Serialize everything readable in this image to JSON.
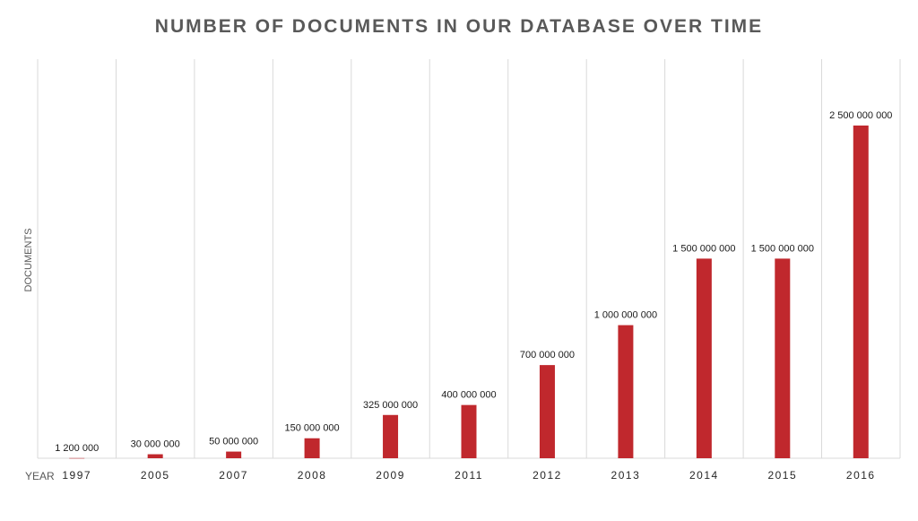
{
  "chart_data": {
    "type": "bar",
    "title": "NUMBER OF DOCUMENTS IN OUR DATABASE OVER TIME",
    "xlabel": "YEAR",
    "ylabel": "DOCUMENTS",
    "categories": [
      "1997",
      "2005",
      "2007",
      "2008",
      "2009",
      "2011",
      "2012",
      "2013",
      "2014",
      "2015",
      "2016"
    ],
    "values": [
      1200000,
      30000000,
      50000000,
      150000000,
      325000000,
      400000000,
      700000000,
      1000000000,
      1500000000,
      1500000000,
      2500000000
    ],
    "data_labels": [
      "1 200 000",
      "30 000 000",
      "50 000 000",
      "150 000 000",
      "325 000 000",
      "400 000 000",
      "700 000 000",
      "1 000 000 000",
      "1 500 000 000",
      "1 500 000 000",
      "2 500 000 000"
    ],
    "ylim": [
      0,
      2500000000
    ],
    "grid": "vertical",
    "bar_color": "#c0282d",
    "gridline_color": "#d9d9d9"
  }
}
